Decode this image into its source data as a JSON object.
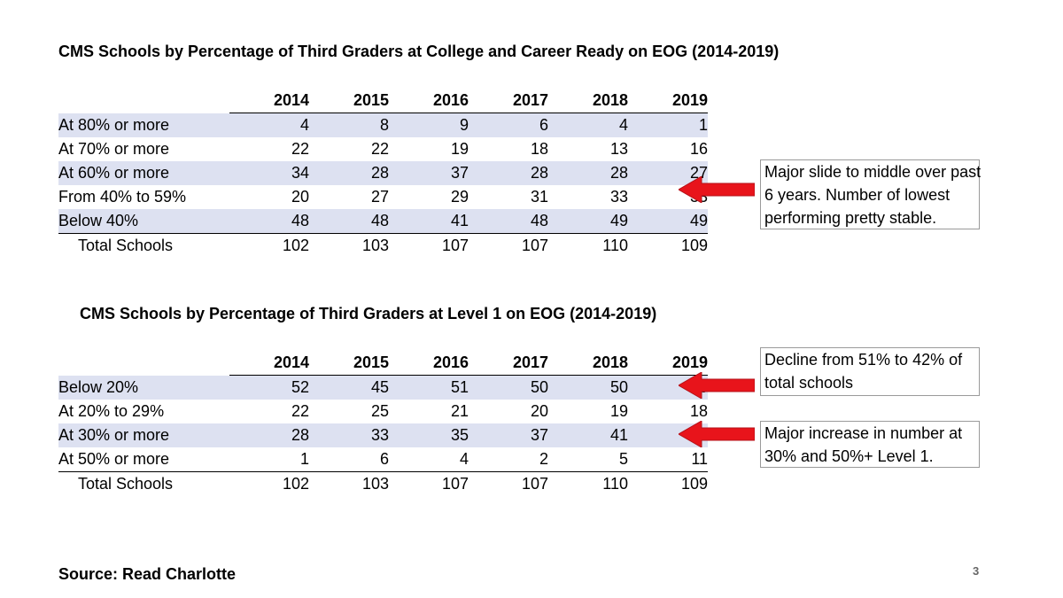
{
  "table1": {
    "title": "CMS Schools by Percentage of Third Graders at College and Career Ready on EOG (2014-2019)",
    "years": [
      "2014",
      "2015",
      "2016",
      "2017",
      "2018",
      "2019"
    ],
    "rows": [
      {
        "label": "At 80% or more",
        "values": [
          "4",
          "8",
          "9",
          "6",
          "4",
          "1"
        ]
      },
      {
        "label": "At 70% or more",
        "values": [
          "22",
          "22",
          "19",
          "18",
          "13",
          "16"
        ]
      },
      {
        "label": "At 60% or more",
        "values": [
          "34",
          "28",
          "37",
          "28",
          "28",
          "27"
        ]
      },
      {
        "label": "From 40% to 59%",
        "values": [
          "20",
          "27",
          "29",
          "31",
          "33",
          "33"
        ]
      },
      {
        "label": "Below 40%",
        "values": [
          "48",
          "48",
          "41",
          "48",
          "49",
          "49"
        ]
      }
    ],
    "total": {
      "label": "Total Schools",
      "values": [
        "102",
        "103",
        "107",
        "107",
        "110",
        "109"
      ]
    }
  },
  "table2": {
    "title": "CMS Schools by Percentage of Third Graders at Level 1 on EOG (2014-2019)",
    "years": [
      "2014",
      "2015",
      "2016",
      "2017",
      "2018",
      "2019"
    ],
    "rows": [
      {
        "label": "Below 20%",
        "values": [
          "52",
          "45",
          "51",
          "50",
          "50",
          "46"
        ]
      },
      {
        "label": "At 20% to 29%",
        "values": [
          "22",
          "25",
          "21",
          "20",
          "19",
          "18"
        ]
      },
      {
        "label": "At 30% or more",
        "values": [
          "28",
          "33",
          "35",
          "37",
          "41",
          "45"
        ]
      },
      {
        "label": "At 50% or more",
        "values": [
          "1",
          "6",
          "4",
          "2",
          "5",
          "11"
        ]
      }
    ],
    "total": {
      "label": "Total Schools",
      "values": [
        "102",
        "103",
        "107",
        "107",
        "110",
        "109"
      ]
    }
  },
  "notes": {
    "note1": [
      "Major slide to middle over past",
      "6 years.  Number of lowest",
      "performing pretty stable."
    ],
    "note2": [
      "Decline from 51% to 42% of",
      "total schools"
    ],
    "note3": [
      "Major increase in number at",
      "30% and 50%+ Level 1."
    ]
  },
  "colors": {
    "arrow": "#e8141b",
    "band": "#dde1f1"
  },
  "source": "Source:  Read Charlotte",
  "page_number": "3"
}
